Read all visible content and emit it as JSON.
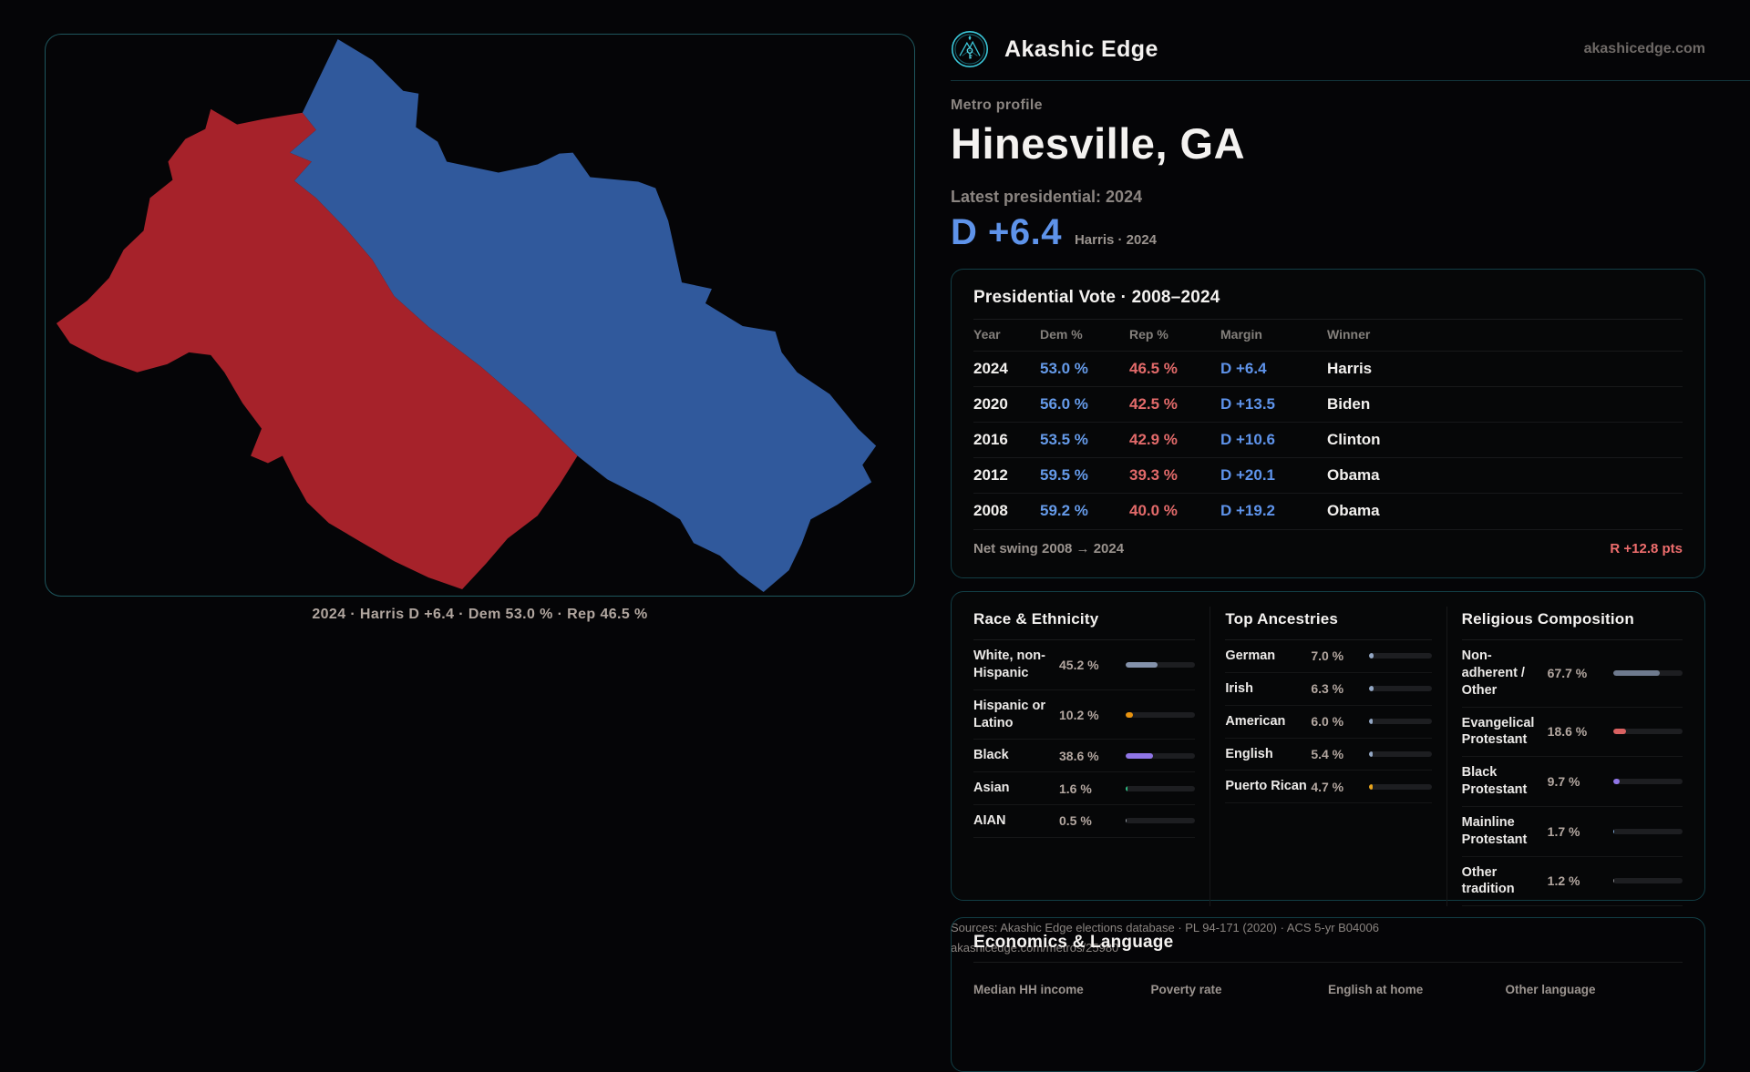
{
  "colors": {
    "accent_teal": "#3bc8da",
    "accent_teal_dim": "#17616d",
    "dem_blue_text": "#5e93ea",
    "rep_red_text": "#e26a6a",
    "map_dem_fill": "#30599c",
    "map_rep_fill": "#a6222a"
  },
  "header": {
    "brand": "Akashic Edge",
    "domain": "akashicedge.com"
  },
  "profile": {
    "kicker": "Metro profile",
    "title": "Hinesville, GA",
    "latest_label": "Latest presidential: 2024",
    "headline_margin": "D +6.4",
    "headline_note": "Harris · 2024"
  },
  "map": {
    "caption": "2024 · Harris D +6.4 · Dem 53.0 % · Rep 46.5 %"
  },
  "vote_table": {
    "title": "Presidential Vote · 2008–2024",
    "columns": [
      "Year",
      "Dem %",
      "Rep %",
      "Margin",
      "Winner"
    ],
    "rows": [
      {
        "year": "2024",
        "dem": "53.0 %",
        "rep": "46.5 %",
        "margin": "D +6.4",
        "winner": "Harris"
      },
      {
        "year": "2020",
        "dem": "56.0 %",
        "rep": "42.5 %",
        "margin": "D +13.5",
        "winner": "Biden"
      },
      {
        "year": "2016",
        "dem": "53.5 %",
        "rep": "42.9 %",
        "margin": "D +10.6",
        "winner": "Clinton"
      },
      {
        "year": "2012",
        "dem": "59.5 %",
        "rep": "39.3 %",
        "margin": "D +20.1",
        "winner": "Obama"
      },
      {
        "year": "2008",
        "dem": "59.2 %",
        "rep": "40.0 %",
        "margin": "D +19.2",
        "winner": "Obama"
      }
    ],
    "footer_label": "Net swing 2008 → 2024",
    "footer_value": "R +12.8 pts"
  },
  "demographics": {
    "race": {
      "title": "Race & Ethnicity",
      "rows": [
        {
          "label": "White, non-Hispanic",
          "value": "45.2 %",
          "pct": 45.2,
          "color": "#8492ab"
        },
        {
          "label": "Hispanic or Latino",
          "value": "10.2 %",
          "pct": 10.2,
          "color": "#e8930f"
        },
        {
          "label": "Black",
          "value": "38.6 %",
          "pct": 38.6,
          "color": "#8f75e6"
        },
        {
          "label": "Asian",
          "value": "1.6 %",
          "pct": 1.6,
          "color": "#2fbf84"
        },
        {
          "label": "AIAN",
          "value": "0.5 %",
          "pct": 0.5,
          "color": "#9aa0a8"
        }
      ]
    },
    "ancestries": {
      "title": "Top Ancestries",
      "rows": [
        {
          "label": "German",
          "value": "7.0 %",
          "pct": 7.0,
          "color": "#93a7c4"
        },
        {
          "label": "Irish",
          "value": "6.3 %",
          "pct": 6.3,
          "color": "#93a7c4"
        },
        {
          "label": "American",
          "value": "6.0 %",
          "pct": 6.0,
          "color": "#93a7c4"
        },
        {
          "label": "English",
          "value": "5.4 %",
          "pct": 5.4,
          "color": "#93a7c4"
        },
        {
          "label": "Puerto Rican",
          "value": "4.7 %",
          "pct": 4.7,
          "color": "#e8a41c"
        }
      ]
    },
    "religion": {
      "title": "Religious Composition",
      "rows": [
        {
          "label": "Non-adherent / Other",
          "value": "67.7 %",
          "pct": 67.7,
          "color": "#6e7a8e"
        },
        {
          "label": "Evangelical Protestant",
          "value": "18.6 %",
          "pct": 18.6,
          "color": "#d96161"
        },
        {
          "label": "Black Protestant",
          "value": "9.7 %",
          "pct": 9.7,
          "color": "#8f75e6"
        },
        {
          "label": "Mainline Protestant",
          "value": "1.7 %",
          "pct": 1.7,
          "color": "#7fa9d9"
        },
        {
          "label": "Other tradition",
          "value": "1.2 %",
          "pct": 1.2,
          "color": "#8d8d92"
        }
      ]
    }
  },
  "economics": {
    "title": "Economics & Language",
    "columns": [
      "Median HH income",
      "Poverty rate",
      "English at home",
      "Other language"
    ]
  },
  "sources": {
    "line1": "Sources: Akashic Edge elections database · PL 94-171 (2020) · ACS 5-yr B04006",
    "line2": "akashicedge.com/metros/25980"
  }
}
